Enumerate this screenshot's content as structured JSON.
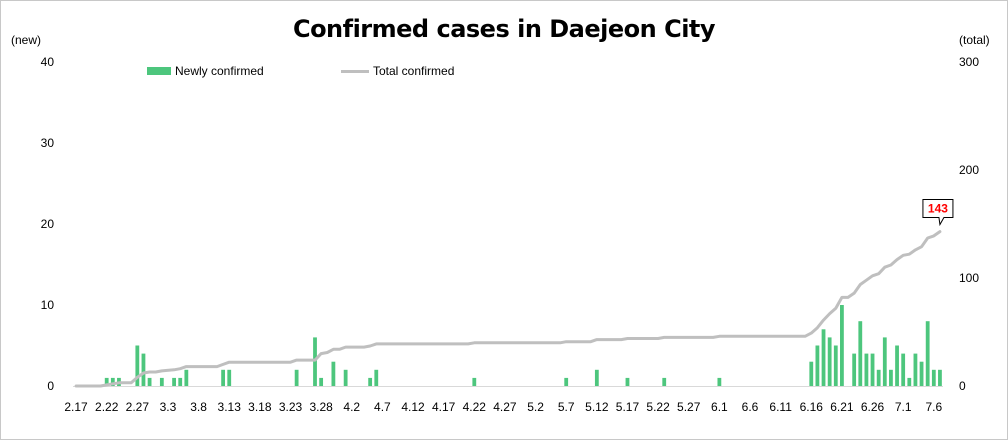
{
  "chart_data": {
    "type": "bar+line",
    "title": "Confirmed cases in Daejeon City",
    "left_axis_unit": "(new)",
    "right_axis_unit": "(total)",
    "left_axis": {
      "min": 0,
      "max": 40,
      "ticks": [
        0,
        10,
        20,
        30,
        40
      ]
    },
    "right_axis": {
      "min": 0,
      "max": 300,
      "ticks": [
        0,
        100,
        200,
        300
      ]
    },
    "grid": false,
    "legend_position": "top-left",
    "series": [
      {
        "name": "Newly confirmed",
        "type": "bar",
        "axis": "left",
        "color": "#4dc67d",
        "x": [
          "2.22",
          "2.23",
          "2.24",
          "2.27",
          "2.28",
          "2.29",
          "3.2",
          "3.4",
          "3.5",
          "3.6",
          "3.12",
          "3.13",
          "3.24",
          "3.27",
          "3.28",
          "3.30",
          "4.1",
          "4.5",
          "4.6",
          "4.22",
          "5.7",
          "5.12",
          "5.17",
          "5.23",
          "6.1",
          "6.16",
          "6.17",
          "6.18",
          "6.19",
          "6.20",
          "6.21",
          "6.23",
          "6.24",
          "6.25",
          "6.26",
          "6.27",
          "6.28",
          "6.29",
          "6.30",
          "7.1",
          "7.2",
          "7.3",
          "7.4",
          "7.5",
          "7.6",
          "7.7"
        ],
        "values": [
          1,
          1,
          1,
          5,
          4,
          1,
          1,
          1,
          1,
          2,
          2,
          2,
          2,
          6,
          1,
          3,
          2,
          1,
          2,
          1,
          1,
          2,
          1,
          1,
          1,
          3,
          5,
          7,
          6,
          5,
          10,
          4,
          8,
          4,
          4,
          2,
          6,
          2,
          5,
          4,
          1,
          4,
          3,
          8,
          2,
          2
        ]
      },
      {
        "name": "Total confirmed",
        "type": "line",
        "axis": "right",
        "color": "#bfbfbf",
        "x": [
          "2.17",
          "2.21",
          "2.22",
          "2.23",
          "2.24",
          "2.26",
          "2.27",
          "2.28",
          "2.29",
          "3.1",
          "3.2",
          "3.4",
          "3.5",
          "3.6",
          "3.11",
          "3.12",
          "3.13",
          "3.23",
          "3.24",
          "3.26",
          "3.27",
          "3.28",
          "3.29",
          "3.30",
          "3.31",
          "4.1",
          "4.4",
          "4.5",
          "4.6",
          "4.21",
          "4.22",
          "5.6",
          "5.7",
          "5.11",
          "5.12",
          "5.16",
          "5.17",
          "5.22",
          "5.23",
          "5.31",
          "6.1",
          "6.15",
          "6.16",
          "6.17",
          "6.18",
          "6.19",
          "6.20",
          "6.21",
          "6.22",
          "6.23",
          "6.24",
          "6.25",
          "6.26",
          "6.27",
          "6.28",
          "6.29",
          "6.30",
          "7.1",
          "7.2",
          "7.3",
          "7.4",
          "7.5",
          "7.6",
          "7.7"
        ],
        "values": [
          0,
          0,
          1,
          2,
          3,
          3,
          8,
          12,
          13,
          13,
          14,
          15,
          16,
          18,
          18,
          20,
          22,
          22,
          24,
          24,
          24,
          30,
          31,
          34,
          34,
          36,
          36,
          37,
          39,
          39,
          40,
          40,
          41,
          41,
          43,
          43,
          44,
          44,
          45,
          45,
          46,
          46,
          49,
          54,
          61,
          67,
          72,
          82,
          82,
          86,
          94,
          98,
          102,
          104,
          110,
          112,
          117,
          121,
          122,
          126,
          129,
          137,
          139,
          143
        ]
      }
    ],
    "x_tick_labels": [
      "2.17",
      "2.22",
      "2.27",
      "3.3",
      "3.8",
      "3.13",
      "3.18",
      "3.23",
      "3.28",
      "4.2",
      "4.7",
      "4.12",
      "4.17",
      "4.22",
      "4.27",
      "5.2",
      "5.7",
      "5.12",
      "5.17",
      "5.22",
      "5.27",
      "6.1",
      "6.6",
      "6.11",
      "6.16",
      "6.21",
      "6.26",
      "7.1",
      "7.6"
    ],
    "annotations": [
      {
        "text": "143",
        "series": "Total confirmed",
        "x": "7.7",
        "value": 143,
        "color": "#ff0000"
      }
    ]
  }
}
